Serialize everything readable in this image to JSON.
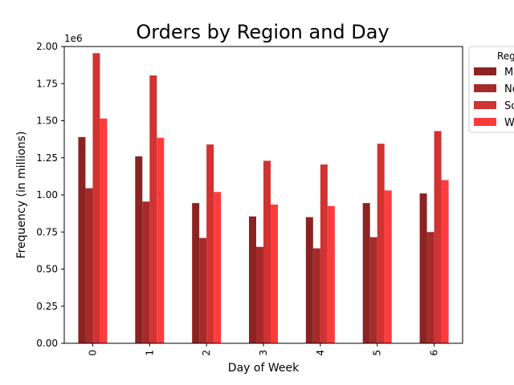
{
  "chart_data": {
    "type": "bar",
    "title": "Orders by Region and Day",
    "xlabel": "Day of Week",
    "ylabel": "Frequency (in millions)",
    "y_offset_text": "1e6",
    "ylim": [
      0,
      2000000
    ],
    "yticks": [
      0,
      250000,
      500000,
      750000,
      1000000,
      1250000,
      1500000,
      1750000,
      2000000
    ],
    "ytick_labels": [
      "0.00",
      "0.25",
      "0.50",
      "0.75",
      "1.00",
      "1.25",
      "1.50",
      "1.75",
      "2.00"
    ],
    "categories": [
      "0",
      "1",
      "2",
      "3",
      "4",
      "5",
      "6"
    ],
    "grid": false,
    "legend": {
      "title": "Reg",
      "placement": "outside top-right",
      "entries": [
        "M",
        "No",
        "So",
        "W"
      ]
    },
    "series": [
      {
        "name": "M",
        "color": "#8b2323",
        "values": [
          1390000,
          1260000,
          945000,
          855000,
          850000,
          945000,
          1010000
        ]
      },
      {
        "name": "No",
        "color": "#a52a2a",
        "values": [
          1045000,
          955000,
          710000,
          650000,
          640000,
          715000,
          750000
        ]
      },
      {
        "name": "So",
        "color": "#d13232",
        "values": [
          1955000,
          1805000,
          1340000,
          1230000,
          1205000,
          1345000,
          1430000
        ]
      },
      {
        "name": "W",
        "color": "#ff3b3b",
        "values": [
          1515000,
          1385000,
          1020000,
          935000,
          925000,
          1030000,
          1100000
        ]
      }
    ]
  }
}
